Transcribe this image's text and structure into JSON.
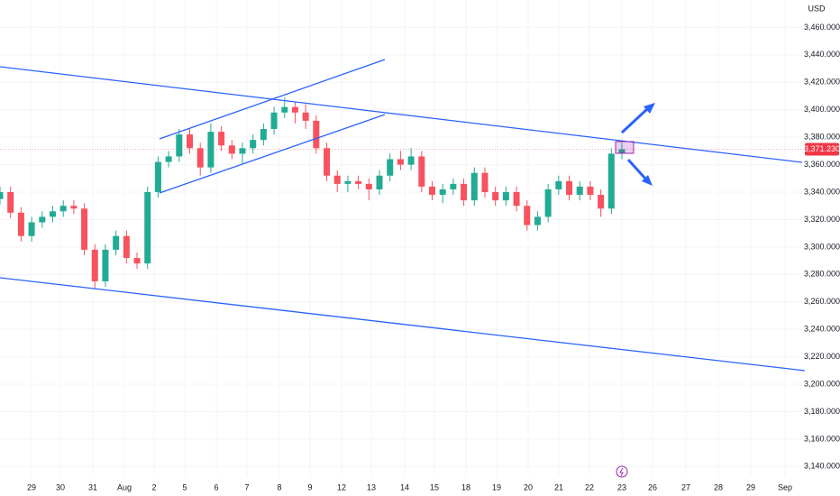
{
  "chart_data": {
    "type": "candlestick",
    "currency": "USD",
    "up_color": "#22ab94",
    "down_color": "#f7525f",
    "grid": true,
    "x": [
      0,
      1,
      2,
      3,
      4,
      5,
      6,
      7,
      8,
      9,
      10,
      11,
      12,
      13,
      14,
      15,
      16,
      17,
      18,
      19,
      20,
      21,
      22,
      23,
      24,
      25,
      26,
      27,
      28,
      29,
      30,
      31,
      32,
      33,
      34,
      35,
      36,
      37,
      38,
      39,
      40,
      41,
      42,
      43,
      44,
      45,
      46,
      47,
      48,
      49,
      50,
      51,
      52,
      53,
      54,
      55,
      56,
      57,
      58,
      59
    ],
    "open": [
      3335,
      3340,
      3325,
      3308,
      3318,
      3322,
      3326,
      3330,
      3328,
      3298,
      3275,
      3298,
      3308,
      3292,
      3288,
      3340,
      3362,
      3366,
      3382,
      3372,
      3358,
      3384,
      3374,
      3368,
      3372,
      3378,
      3386,
      3398,
      3402,
      3398,
      3392,
      3372,
      3352,
      3346,
      3348,
      3346,
      3342,
      3352,
      3364,
      3360,
      3366,
      3344,
      3338,
      3342,
      3346,
      3334,
      3354,
      3340,
      3334,
      3340,
      3330,
      3316,
      3322,
      3342,
      3348,
      3338,
      3344,
      3338,
      3328,
      3368
    ],
    "high": [
      3344,
      3344,
      3329,
      3322,
      3326,
      3330,
      3334,
      3334,
      3332,
      3302,
      3302,
      3312,
      3312,
      3296,
      3344,
      3366,
      3370,
      3386,
      3386,
      3376,
      3390,
      3388,
      3378,
      3376,
      3382,
      3390,
      3402,
      3409,
      3406,
      3404,
      3396,
      3376,
      3356,
      3352,
      3352,
      3350,
      3356,
      3368,
      3370,
      3372,
      3370,
      3348,
      3346,
      3350,
      3350,
      3358,
      3358,
      3344,
      3344,
      3344,
      3334,
      3326,
      3346,
      3352,
      3352,
      3348,
      3348,
      3342,
      3372,
      3376
    ],
    "low": [
      3331,
      3321,
      3304,
      3304,
      3314,
      3318,
      3322,
      3324,
      3294,
      3270,
      3271,
      3294,
      3288,
      3284,
      3284,
      3336,
      3358,
      3362,
      3368,
      3352,
      3354,
      3370,
      3364,
      3360,
      3368,
      3374,
      3382,
      3394,
      3390,
      3386,
      3368,
      3348,
      3340,
      3340,
      3342,
      3334,
      3338,
      3348,
      3356,
      3356,
      3340,
      3334,
      3332,
      3338,
      3330,
      3330,
      3336,
      3330,
      3330,
      3326,
      3312,
      3312,
      3318,
      3338,
      3334,
      3334,
      3334,
      3322,
      3324,
      3364
    ],
    "close": [
      3340,
      3325,
      3308,
      3318,
      3322,
      3326,
      3330,
      3328,
      3298,
      3275,
      3298,
      3308,
      3292,
      3288,
      3340,
      3362,
      3366,
      3382,
      3372,
      3358,
      3384,
      3374,
      3368,
      3372,
      3378,
      3386,
      3398,
      3402,
      3398,
      3392,
      3372,
      3352,
      3346,
      3348,
      3346,
      3342,
      3352,
      3364,
      3360,
      3366,
      3344,
      3338,
      3342,
      3346,
      3334,
      3354,
      3340,
      3334,
      3340,
      3330,
      3316,
      3322,
      3342,
      3348,
      3338,
      3344,
      3338,
      3328,
      3368,
      3371.23
    ],
    "last_price": {
      "value": 3371.23,
      "label": "3,371.230"
    },
    "xlim": [
      0,
      76.1
    ],
    "xticks": [
      {
        "value": 2.99,
        "label": "29"
      },
      {
        "value": 5.73,
        "label": "30"
      },
      {
        "value": 8.81,
        "label": "31"
      },
      {
        "value": 11.8,
        "label": "Aug"
      },
      {
        "value": 14.62,
        "label": "2"
      },
      {
        "value": 17.53,
        "label": "5"
      },
      {
        "value": 20.52,
        "label": "6"
      },
      {
        "value": 23.43,
        "label": "7"
      },
      {
        "value": 26.51,
        "label": "8"
      },
      {
        "value": 29.41,
        "label": "9"
      },
      {
        "value": 32.41,
        "label": "12"
      },
      {
        "value": 35.23,
        "label": "13"
      },
      {
        "value": 38.39,
        "label": "14"
      },
      {
        "value": 41.21,
        "label": "15"
      },
      {
        "value": 44.21,
        "label": "18"
      },
      {
        "value": 47.11,
        "label": "19"
      },
      {
        "value": 50.11,
        "label": "20"
      },
      {
        "value": 53.01,
        "label": "21"
      },
      {
        "value": 55.92,
        "label": "22"
      },
      {
        "value": 59.0,
        "label": "23"
      },
      {
        "value": 61.91,
        "label": "26"
      },
      {
        "value": 65.07,
        "label": "27"
      },
      {
        "value": 68.15,
        "label": "28"
      },
      {
        "value": 71.23,
        "label": "29"
      },
      {
        "value": 74.48,
        "label": "Sep"
      }
    ],
    "ylim": [
      3133,
      3480
    ],
    "yticks": [
      {
        "value": 3140,
        "label": "3,140.000"
      },
      {
        "value": 3160,
        "label": "3,160.000"
      },
      {
        "value": 3180,
        "label": "3,180.000"
      },
      {
        "value": 3200,
        "label": "3,200.000"
      },
      {
        "value": 3220,
        "label": "3,220.000"
      },
      {
        "value": 3240,
        "label": "3,240.000"
      },
      {
        "value": 3260,
        "label": "3,260.000"
      },
      {
        "value": 3280,
        "label": "3,280.000"
      },
      {
        "value": 3300,
        "label": "3,300.000"
      },
      {
        "value": 3320,
        "label": "3,320.000"
      },
      {
        "value": 3340,
        "label": "3,340.000"
      },
      {
        "value": 3360,
        "label": "3,360.000"
      },
      {
        "value": 3380,
        "label": "3,380.000"
      },
      {
        "value": 3400,
        "label": "3,400.000"
      },
      {
        "value": 3420,
        "label": "3,420.000"
      },
      {
        "value": 3440,
        "label": "3,440.000"
      },
      {
        "value": 3460,
        "label": "3,460.000"
      }
    ]
  }
}
